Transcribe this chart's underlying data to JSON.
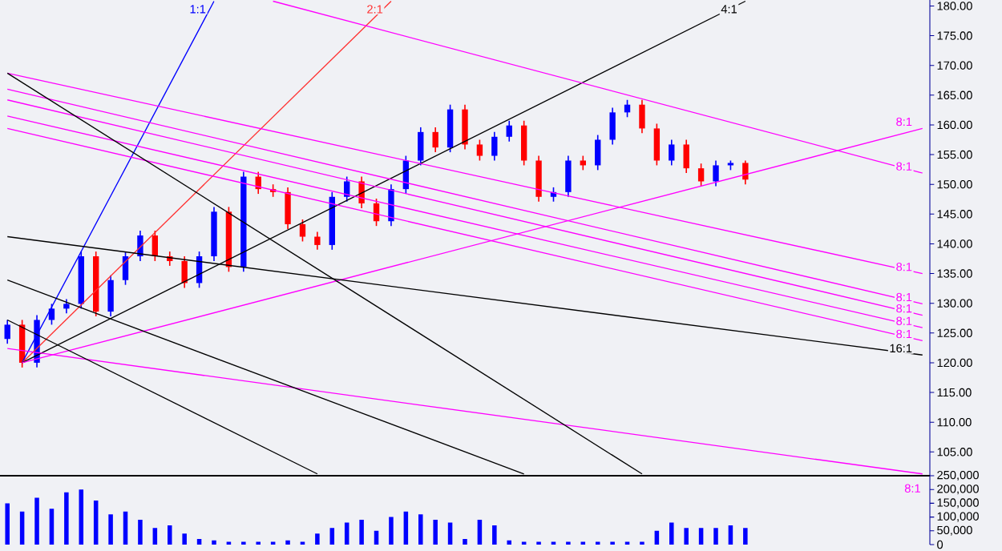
{
  "chart_data": [
    {
      "type": "candlestick",
      "ylim": [
        101,
        181
      ],
      "tick_labels": "y",
      "yticks": [
        {
          "value": 105,
          "label": "105.00"
        },
        {
          "value": 110,
          "label": "110.00"
        },
        {
          "value": 115,
          "label": "115.00"
        },
        {
          "value": 120,
          "label": "120.00"
        },
        {
          "value": 125,
          "label": "125.00"
        },
        {
          "value": 130,
          "label": "130.00"
        },
        {
          "value": 135,
          "label": "135.00"
        },
        {
          "value": 140,
          "label": "140.00"
        },
        {
          "value": 145,
          "label": "145.00"
        },
        {
          "value": 150,
          "label": "150.00"
        },
        {
          "value": 155,
          "label": "155.00"
        },
        {
          "value": 160,
          "label": "160.00"
        },
        {
          "value": 165,
          "label": "165.00"
        },
        {
          "value": 170,
          "label": "170.00"
        },
        {
          "value": 175,
          "label": "175.00"
        },
        {
          "value": 180,
          "label": "180.00"
        }
      ],
      "categories": [
        null,
        null,
        null,
        null,
        null,
        null,
        null,
        null,
        null,
        null,
        null,
        null,
        null,
        null,
        null,
        null,
        null,
        null,
        null,
        null,
        null,
        null,
        null,
        null,
        null,
        null,
        null,
        null,
        null,
        null,
        null,
        null,
        null,
        null,
        null,
        null,
        null,
        null,
        null,
        null,
        null,
        null,
        null,
        null,
        null,
        null,
        null,
        null,
        null,
        null,
        null,
        null,
        null,
        null,
        null,
        null,
        null,
        null,
        null,
        null,
        null,
        null,
        null
      ],
      "ohlc": [
        [
          124.0,
          127.2,
          123.2,
          126.4
        ],
        [
          126.4,
          127.2,
          119.2,
          120.0
        ],
        [
          120.0,
          128.0,
          119.2,
          127.2
        ],
        [
          127.2,
          129.9,
          126.4,
          129.1
        ],
        [
          129.1,
          130.7,
          128.3,
          129.9
        ],
        [
          129.9,
          138.7,
          129.1,
          137.9
        ],
        [
          137.9,
          138.7,
          127.8,
          128.6
        ],
        [
          128.6,
          134.7,
          127.8,
          133.9
        ],
        [
          133.9,
          138.7,
          133.1,
          137.9
        ],
        [
          137.9,
          142.2,
          137.1,
          141.4
        ],
        [
          141.4,
          142.2,
          137.1,
          137.9
        ],
        [
          137.9,
          138.7,
          136.3,
          137.1
        ],
        [
          137.1,
          137.9,
          132.6,
          133.4
        ],
        [
          133.4,
          138.7,
          132.6,
          137.9
        ],
        [
          137.9,
          146.2,
          137.1,
          145.4
        ],
        [
          145.4,
          146.2,
          135.3,
          136.1
        ],
        [
          136.1,
          152.1,
          135.3,
          151.3
        ],
        [
          151.3,
          152.1,
          148.4,
          149.2
        ],
        [
          149.2,
          150.0,
          147.9,
          148.7
        ],
        [
          148.7,
          149.5,
          142.5,
          143.3
        ],
        [
          143.3,
          144.1,
          140.4,
          141.2
        ],
        [
          141.2,
          142.0,
          139.0,
          139.8
        ],
        [
          139.8,
          148.7,
          139.0,
          147.9
        ],
        [
          147.9,
          151.3,
          147.1,
          150.5
        ],
        [
          150.5,
          151.3,
          146.0,
          146.8
        ],
        [
          146.8,
          147.6,
          143.0,
          143.8
        ],
        [
          143.8,
          150.0,
          143.0,
          149.2
        ],
        [
          149.2,
          154.8,
          148.4,
          154.0
        ],
        [
          154.0,
          159.6,
          153.2,
          158.8
        ],
        [
          158.8,
          159.6,
          155.4,
          156.2
        ],
        [
          156.2,
          163.4,
          155.4,
          162.6
        ],
        [
          162.6,
          163.4,
          155.9,
          156.7
        ],
        [
          156.7,
          157.5,
          154.0,
          154.8
        ],
        [
          154.8,
          158.8,
          154.0,
          158.0
        ],
        [
          158.0,
          160.7,
          157.2,
          159.9
        ],
        [
          159.9,
          160.7,
          153.2,
          154.0
        ],
        [
          154.0,
          154.8,
          147.1,
          147.9
        ],
        [
          147.9,
          149.5,
          147.1,
          148.7
        ],
        [
          148.7,
          154.8,
          147.9,
          154.0
        ],
        [
          154.0,
          154.8,
          152.4,
          153.2
        ],
        [
          153.2,
          158.3,
          152.4,
          157.5
        ],
        [
          157.5,
          162.9,
          156.7,
          162.1
        ],
        [
          162.1,
          164.2,
          161.3,
          163.4
        ],
        [
          163.4,
          164.2,
          158.6,
          159.4
        ],
        [
          159.4,
          160.2,
          153.2,
          154.0
        ],
        [
          154.0,
          157.5,
          153.2,
          156.7
        ],
        [
          156.7,
          157.5,
          151.9,
          152.7
        ],
        [
          152.7,
          153.5,
          149.7,
          150.5
        ],
        [
          150.5,
          154.0,
          149.7,
          153.2
        ],
        [
          153.2,
          154.0,
          152.4,
          153.6
        ],
        [
          153.6,
          154.0,
          150.0,
          150.8
        ],
        null,
        null,
        null,
        null,
        null,
        null,
        null,
        null,
        null,
        null,
        null,
        null
      ],
      "colors": [
        "#0000ff",
        "#ff0000",
        "#0000ff",
        "#0000ff",
        "#0000ff",
        "#0000ff",
        "#ff0000",
        "#0000ff",
        "#0000ff",
        "#0000ff",
        "#ff0000",
        "#ff0000",
        "#ff0000",
        "#0000ff",
        "#0000ff",
        "#ff0000",
        "#0000ff",
        "#ff0000",
        "#ff0000",
        "#ff0000",
        "#ff0000",
        "#ff0000",
        "#0000ff",
        "#0000ff",
        "#ff0000",
        "#ff0000",
        "#0000ff",
        "#0000ff",
        "#0000ff",
        "#ff0000",
        "#0000ff",
        "#ff0000",
        "#ff0000",
        "#0000ff",
        "#0000ff",
        "#ff0000",
        "#ff0000",
        "#0000ff",
        "#0000ff",
        "#ff0000",
        "#0000ff",
        "#0000ff",
        "#0000ff",
        "#ff0000",
        "#ff0000",
        "#0000ff",
        "#ff0000",
        "#ff0000",
        "#0000ff",
        "#0000ff",
        "#ff0000",
        null,
        null,
        null,
        null,
        null,
        null,
        null,
        null,
        null,
        null,
        null,
        null
      ],
      "series": [
        {
          "type": "line",
          "name": "1:1",
          "color": "#0000ff",
          "values": [
            null,
            120.0,
            null,
            null,
            null,
            null,
            null,
            null,
            null,
            null,
            null,
            null,
            null,
            null,
            180.8,
            null,
            null,
            null,
            null,
            null,
            null,
            null,
            null,
            null,
            null,
            null,
            null,
            null,
            null,
            null,
            null,
            null,
            null,
            null,
            null,
            null,
            null,
            null,
            null,
            null,
            null,
            null,
            null,
            null,
            null,
            null,
            null,
            null,
            null,
            null,
            null,
            null,
            null,
            null,
            null,
            null,
            null,
            null,
            null,
            null,
            null,
            null,
            null
          ]
        },
        {
          "type": "line",
          "name": "2:1",
          "color": "#ff3030",
          "values": [
            null,
            120.0,
            null,
            null,
            null,
            null,
            null,
            null,
            null,
            null,
            null,
            null,
            null,
            null,
            null,
            null,
            null,
            null,
            null,
            null,
            null,
            null,
            null,
            null,
            null,
            null,
            180.8,
            null,
            null,
            null,
            null,
            null,
            null,
            null,
            null,
            null,
            null,
            null,
            null,
            null,
            null,
            null,
            null,
            null,
            null,
            null,
            null,
            null,
            null,
            null,
            null,
            null,
            null,
            null,
            null,
            null,
            null,
            null,
            null,
            null,
            null,
            null,
            null
          ]
        },
        {
          "type": "line",
          "name": "4:1",
          "color": "#000000",
          "values": [
            null,
            120.0,
            null,
            null,
            null,
            null,
            null,
            null,
            null,
            null,
            null,
            null,
            null,
            null,
            null,
            null,
            null,
            null,
            null,
            null,
            null,
            null,
            null,
            null,
            null,
            null,
            null,
            null,
            null,
            null,
            null,
            null,
            null,
            null,
            null,
            null,
            null,
            null,
            null,
            null,
            null,
            null,
            null,
            null,
            null,
            null,
            null,
            null,
            null,
            null,
            180.8,
            null,
            null,
            null,
            null,
            null,
            null,
            null,
            null,
            null,
            null,
            null,
            null
          ]
        },
        {
          "type": "line",
          "name": "8:1",
          "color": "#ff00ff",
          "values": [
            null,
            120.0,
            null,
            null,
            null,
            null,
            null,
            null,
            null,
            null,
            null,
            null,
            null,
            null,
            null,
            null,
            null,
            null,
            null,
            null,
            null,
            null,
            null,
            null,
            null,
            null,
            null,
            null,
            null,
            null,
            null,
            null,
            null,
            null,
            null,
            null,
            null,
            null,
            null,
            null,
            null,
            null,
            null,
            null,
            null,
            null,
            null,
            null,
            null,
            null,
            null,
            null,
            null,
            null,
            null,
            null,
            null,
            null,
            null,
            null,
            null,
            null,
            159.4
          ]
        },
        {
          "type": "line",
          "name": "8:1",
          "color": "#ff00ff",
          "values": [
            null,
            null,
            null,
            null,
            null,
            null,
            null,
            null,
            null,
            null,
            null,
            null,
            null,
            null,
            null,
            null,
            null,
            null,
            180.8,
            null,
            null,
            null,
            null,
            null,
            null,
            null,
            null,
            null,
            null,
            null,
            null,
            null,
            null,
            null,
            null,
            null,
            null,
            null,
            null,
            null,
            null,
            null,
            null,
            null,
            null,
            null,
            null,
            null,
            null,
            null,
            null,
            null,
            null,
            null,
            null,
            null,
            null,
            null,
            null,
            null,
            null,
            null,
            151.9
          ]
        },
        {
          "type": "line",
          "name": "8:1",
          "color": "#ff00ff",
          "values": [
            168.7,
            null,
            null,
            null,
            null,
            null,
            null,
            null,
            null,
            null,
            null,
            null,
            null,
            null,
            null,
            null,
            null,
            null,
            null,
            null,
            null,
            null,
            null,
            null,
            null,
            null,
            null,
            null,
            null,
            null,
            null,
            null,
            null,
            null,
            null,
            null,
            null,
            null,
            null,
            null,
            null,
            null,
            null,
            null,
            null,
            null,
            null,
            null,
            null,
            null,
            null,
            null,
            null,
            null,
            null,
            null,
            null,
            null,
            null,
            null,
            null,
            null,
            135.0
          ]
        },
        {
          "type": "line",
          "name": "8:1",
          "color": "#ff00ff",
          "values": [
            166.0,
            null,
            null,
            null,
            null,
            null,
            null,
            null,
            null,
            null,
            null,
            null,
            null,
            null,
            null,
            null,
            null,
            null,
            null,
            null,
            null,
            null,
            null,
            null,
            null,
            null,
            null,
            null,
            null,
            null,
            null,
            null,
            null,
            null,
            null,
            null,
            null,
            null,
            null,
            null,
            null,
            null,
            null,
            null,
            null,
            null,
            null,
            null,
            null,
            null,
            null,
            null,
            null,
            null,
            null,
            null,
            null,
            null,
            null,
            null,
            null,
            null,
            129.9
          ]
        },
        {
          "type": "line",
          "name": "8:1",
          "color": "#ff00ff",
          "values": [
            164.2,
            null,
            null,
            null,
            null,
            null,
            null,
            null,
            null,
            null,
            null,
            null,
            null,
            null,
            null,
            null,
            null,
            null,
            null,
            null,
            null,
            null,
            null,
            null,
            null,
            null,
            null,
            null,
            null,
            null,
            null,
            null,
            null,
            null,
            null,
            null,
            null,
            null,
            null,
            null,
            null,
            null,
            null,
            null,
            null,
            null,
            null,
            null,
            null,
            null,
            null,
            null,
            null,
            null,
            null,
            null,
            null,
            null,
            null,
            null,
            null,
            null,
            128.0
          ]
        },
        {
          "type": "line",
          "name": "8:1",
          "color": "#ff00ff",
          "values": [
            161.5,
            null,
            null,
            null,
            null,
            null,
            null,
            null,
            null,
            null,
            null,
            null,
            null,
            null,
            null,
            null,
            null,
            null,
            null,
            null,
            null,
            null,
            null,
            null,
            null,
            null,
            null,
            null,
            null,
            null,
            null,
            null,
            null,
            null,
            null,
            null,
            null,
            null,
            null,
            null,
            null,
            null,
            null,
            null,
            null,
            null,
            null,
            null,
            null,
            null,
            null,
            null,
            null,
            null,
            null,
            null,
            null,
            null,
            null,
            null,
            null,
            null,
            125.9
          ]
        },
        {
          "type": "line",
          "name": "8:1",
          "color": "#ff00ff",
          "values": [
            159.4,
            null,
            null,
            null,
            null,
            null,
            null,
            null,
            null,
            null,
            null,
            null,
            null,
            null,
            null,
            null,
            null,
            null,
            null,
            null,
            null,
            null,
            null,
            null,
            null,
            null,
            null,
            null,
            null,
            null,
            null,
            null,
            null,
            null,
            null,
            null,
            null,
            null,
            null,
            null,
            null,
            null,
            null,
            null,
            null,
            null,
            null,
            null,
            null,
            null,
            null,
            null,
            null,
            null,
            null,
            null,
            null,
            null,
            null,
            null,
            null,
            null,
            123.7
          ]
        },
        {
          "type": "line",
          "name": "16:1",
          "color": "#000000",
          "values": [
            141.2,
            null,
            null,
            null,
            null,
            null,
            null,
            null,
            null,
            null,
            null,
            null,
            null,
            null,
            null,
            null,
            null,
            null,
            null,
            null,
            null,
            null,
            null,
            null,
            null,
            null,
            null,
            null,
            null,
            null,
            null,
            null,
            null,
            null,
            null,
            null,
            null,
            null,
            null,
            null,
            null,
            null,
            null,
            null,
            null,
            null,
            null,
            null,
            null,
            null,
            null,
            null,
            null,
            null,
            null,
            null,
            null,
            null,
            null,
            null,
            null,
            null,
            121.3
          ]
        },
        {
          "type": "line",
          "name": "8:1",
          "color": "#ff00ff",
          "values": [
            122.4,
            null,
            null,
            null,
            null,
            null,
            null,
            null,
            null,
            null,
            null,
            null,
            null,
            null,
            null,
            null,
            null,
            null,
            null,
            null,
            null,
            null,
            null,
            null,
            null,
            null,
            null,
            null,
            null,
            null,
            null,
            null,
            null,
            null,
            null,
            null,
            null,
            null,
            null,
            null,
            null,
            null,
            null,
            null,
            null,
            null,
            null,
            null,
            null,
            null,
            null,
            null,
            null,
            null,
            null,
            null,
            null,
            null,
            null,
            null,
            null,
            null,
            101.3
          ]
        },
        {
          "type": "line",
          "color": "#000000",
          "values": [
            168.7,
            null,
            null,
            null,
            null,
            null,
            null,
            null,
            null,
            null,
            null,
            null,
            null,
            null,
            null,
            null,
            null,
            null,
            null,
            null,
            null,
            null,
            null,
            null,
            null,
            null,
            null,
            null,
            null,
            null,
            null,
            null,
            null,
            null,
            null,
            null,
            null,
            null,
            null,
            null,
            null,
            null,
            null,
            101.3,
            null,
            null,
            null,
            null,
            null,
            null,
            null,
            null,
            null,
            null,
            null,
            null,
            null,
            null,
            null,
            null,
            null,
            null,
            null
          ]
        },
        {
          "type": "line",
          "color": "#000000",
          "values": [
            133.9,
            null,
            null,
            null,
            null,
            null,
            null,
            null,
            null,
            null,
            null,
            null,
            null,
            null,
            null,
            null,
            null,
            null,
            null,
            null,
            null,
            null,
            null,
            null,
            null,
            null,
            null,
            null,
            null,
            null,
            null,
            null,
            null,
            null,
            null,
            101.3,
            null,
            null,
            null,
            null,
            null,
            null,
            null,
            null,
            null,
            null,
            null,
            null,
            null,
            null,
            null,
            null,
            null,
            null,
            null,
            null,
            null,
            null,
            null,
            null,
            null,
            null,
            null
          ]
        },
        {
          "type": "line",
          "color": "#000000",
          "values": [
            127.2,
            null,
            null,
            null,
            null,
            null,
            null,
            null,
            null,
            null,
            null,
            null,
            null,
            null,
            null,
            null,
            null,
            null,
            null,
            null,
            null,
            101.3,
            null,
            null,
            null,
            null,
            null,
            null,
            null,
            null,
            null,
            null,
            null,
            null,
            null,
            null,
            null,
            null,
            null,
            null,
            null,
            null,
            null,
            null,
            null,
            null,
            null,
            null,
            null,
            null,
            null,
            null,
            null,
            null,
            null,
            null,
            null,
            null,
            null,
            null,
            null,
            null,
            null
          ]
        }
      ]
    },
    {
      "type": "bar",
      "ylim": [
        0,
        250000
      ],
      "tick_labels": "y",
      "color": "#0000ff",
      "yticks": [
        {
          "value": 0,
          "label": "0"
        },
        {
          "value": 50000,
          "label": "50,000"
        },
        {
          "value": 100000,
          "label": "100,000"
        },
        {
          "value": 150000,
          "label": "150,000"
        },
        {
          "value": 200000,
          "label": "200,000"
        },
        {
          "value": 250000,
          "label": "250,000"
        }
      ],
      "categories": [
        null,
        null,
        null,
        null,
        null,
        null,
        null,
        null,
        null,
        null,
        null,
        null,
        null,
        null,
        null,
        null,
        null,
        null,
        null,
        null,
        null,
        null,
        null,
        null,
        null,
        null,
        null,
        null,
        null,
        null,
        null,
        null,
        null,
        null,
        null,
        null,
        null,
        null,
        null,
        null,
        null,
        null,
        null,
        null,
        null,
        null,
        null,
        null,
        null,
        null,
        null,
        null,
        null,
        null,
        null,
        null,
        null,
        null,
        null,
        null,
        null,
        null,
        null
      ],
      "values": [
        150000,
        120000,
        170000,
        130000,
        190000,
        200000,
        160000,
        110000,
        120000,
        90000,
        60000,
        70000,
        40000,
        20000,
        15000,
        10000,
        10000,
        10000,
        10000,
        15000,
        10000,
        40000,
        60000,
        80000,
        90000,
        50000,
        100000,
        120000,
        110000,
        90000,
        80000,
        20000,
        90000,
        70000,
        15000,
        10000,
        10000,
        10000,
        10000,
        10000,
        10000,
        10000,
        10000,
        10000,
        50000,
        80000,
        60000,
        60000,
        60000,
        70000,
        60000,
        null,
        null,
        null,
        null,
        null,
        null,
        null,
        null,
        null,
        null,
        null,
        null
      ]
    }
  ]
}
